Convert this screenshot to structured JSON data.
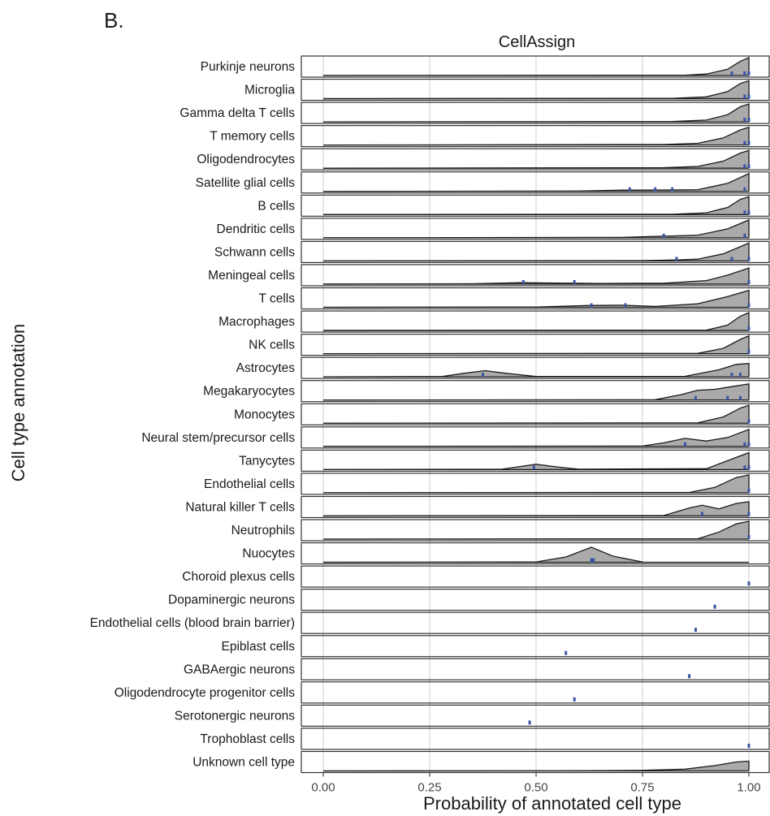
{
  "figure": {
    "panel_label": "B.",
    "strip_title": "CellAssign"
  },
  "chart_data": {
    "type": "ridgeline",
    "xlabel": "Probability of annotated cell type",
    "ylabel": "Cell type annotation",
    "xlim": [
      0,
      1
    ],
    "xticks": [
      0,
      0.25,
      0.5,
      0.75,
      1
    ],
    "xtick_labels": [
      "0.00",
      "0.25",
      "0.50",
      "0.75",
      "1.00"
    ],
    "grid": true,
    "colors": {
      "density_fill": "#aaaaaa",
      "density_line": "#1a1a1a",
      "rug": "#3a55a4",
      "grid": "#e6e6e6"
    },
    "series": [
      {
        "name": "Purkinje neurons",
        "density": [
          [
            0.85,
            0.02
          ],
          [
            0.9,
            0.08
          ],
          [
            0.95,
            0.35
          ],
          [
            0.98,
            0.8
          ],
          [
            1.0,
            1.0
          ]
        ],
        "rug": [
          0.96,
          0.99,
          1.0
        ]
      },
      {
        "name": "Microglia",
        "density": [
          [
            0.82,
            0.02
          ],
          [
            0.9,
            0.1
          ],
          [
            0.95,
            0.4
          ],
          [
            0.98,
            0.85
          ],
          [
            1.0,
            1.0
          ]
        ],
        "rug": [
          0.99,
          1.0
        ]
      },
      {
        "name": "Gamma delta T cells",
        "density": [
          [
            0.82,
            0.02
          ],
          [
            0.9,
            0.1
          ],
          [
            0.95,
            0.4
          ],
          [
            0.98,
            0.85
          ],
          [
            1.0,
            1.0
          ]
        ],
        "rug": [
          0.99,
          1.0
        ]
      },
      {
        "name": "T memory cells",
        "density": [
          [
            0.8,
            0.03
          ],
          [
            0.88,
            0.1
          ],
          [
            0.94,
            0.4
          ],
          [
            0.98,
            0.85
          ],
          [
            1.0,
            1.0
          ]
        ],
        "rug": [
          0.99,
          1.0
        ]
      },
      {
        "name": "Oligodendrocytes",
        "density": [
          [
            0.8,
            0.03
          ],
          [
            0.88,
            0.1
          ],
          [
            0.94,
            0.4
          ],
          [
            0.98,
            0.85
          ],
          [
            1.0,
            1.0
          ]
        ],
        "rug": [
          0.99,
          1.0
        ]
      },
      {
        "name": "Satellite glial cells",
        "density": [
          [
            0.6,
            0.02
          ],
          [
            0.7,
            0.07
          ],
          [
            0.8,
            0.08
          ],
          [
            0.88,
            0.1
          ],
          [
            0.95,
            0.45
          ],
          [
            1.0,
            1.0
          ]
        ],
        "rug": [
          0.72,
          0.78,
          0.82,
          0.99
        ]
      },
      {
        "name": "B cells",
        "density": [
          [
            0.82,
            0.02
          ],
          [
            0.9,
            0.1
          ],
          [
            0.95,
            0.4
          ],
          [
            0.98,
            0.85
          ],
          [
            1.0,
            1.0
          ]
        ],
        "rug": [
          0.99,
          1.0
        ]
      },
      {
        "name": "Dendritic cells",
        "density": [
          [
            0.7,
            0.02
          ],
          [
            0.78,
            0.08
          ],
          [
            0.82,
            0.1
          ],
          [
            0.88,
            0.15
          ],
          [
            0.95,
            0.5
          ],
          [
            1.0,
            1.0
          ]
        ],
        "rug": [
          0.8,
          0.99
        ]
      },
      {
        "name": "Schwann cells",
        "density": [
          [
            0.75,
            0.02
          ],
          [
            0.83,
            0.06
          ],
          [
            0.88,
            0.1
          ],
          [
            0.94,
            0.4
          ],
          [
            1.0,
            1.0
          ]
        ],
        "rug": [
          0.83,
          0.96,
          1.0
        ]
      },
      {
        "name": "Meningeal cells",
        "density": [
          [
            0.35,
            0.02
          ],
          [
            0.46,
            0.08
          ],
          [
            0.55,
            0.06
          ],
          [
            0.65,
            0.04
          ],
          [
            0.8,
            0.05
          ],
          [
            0.9,
            0.2
          ],
          [
            0.95,
            0.5
          ],
          [
            1.0,
            0.9
          ]
        ],
        "rug": [
          0.47,
          0.59,
          1.0
        ]
      },
      {
        "name": "T cells",
        "density": [
          [
            0.5,
            0.02
          ],
          [
            0.62,
            0.1
          ],
          [
            0.7,
            0.12
          ],
          [
            0.78,
            0.05
          ],
          [
            0.88,
            0.2
          ],
          [
            0.95,
            0.6
          ],
          [
            1.0,
            0.95
          ]
        ],
        "rug": [
          0.63,
          0.71,
          1.0
        ]
      },
      {
        "name": "Macrophages",
        "density": [
          [
            0.9,
            0.02
          ],
          [
            0.95,
            0.3
          ],
          [
            0.98,
            0.8
          ],
          [
            1.0,
            1.0
          ]
        ],
        "rug": [
          1.0
        ]
      },
      {
        "name": "NK cells",
        "density": [
          [
            0.88,
            0.02
          ],
          [
            0.94,
            0.3
          ],
          [
            0.98,
            0.8
          ],
          [
            1.0,
            1.0
          ]
        ],
        "rug": [
          1.0
        ]
      },
      {
        "name": "Astrocytes",
        "density": [
          [
            0.28,
            0.02
          ],
          [
            0.33,
            0.2
          ],
          [
            0.38,
            0.35
          ],
          [
            0.43,
            0.2
          ],
          [
            0.5,
            0.02
          ],
          [
            0.85,
            0.03
          ],
          [
            0.93,
            0.4
          ],
          [
            0.97,
            0.7
          ],
          [
            1.0,
            0.75
          ]
        ],
        "rug": [
          0.375,
          0.96,
          0.98
        ]
      },
      {
        "name": "Megakaryocytes",
        "density": [
          [
            0.78,
            0.02
          ],
          [
            0.84,
            0.3
          ],
          [
            0.88,
            0.55
          ],
          [
            0.92,
            0.6
          ],
          [
            0.96,
            0.75
          ],
          [
            1.0,
            0.9
          ]
        ],
        "rug": [
          0.875,
          0.95,
          0.98
        ]
      },
      {
        "name": "Monocytes",
        "density": [
          [
            0.88,
            0.02
          ],
          [
            0.94,
            0.35
          ],
          [
            0.98,
            0.85
          ],
          [
            1.0,
            1.0
          ]
        ],
        "rug": [
          1.0
        ]
      },
      {
        "name": "Neural stem/precursor cells",
        "density": [
          [
            0.75,
            0.02
          ],
          [
            0.8,
            0.2
          ],
          [
            0.85,
            0.45
          ],
          [
            0.9,
            0.3
          ],
          [
            0.95,
            0.5
          ],
          [
            1.0,
            0.95
          ]
        ],
        "rug": [
          0.85,
          0.99,
          1.0
        ]
      },
      {
        "name": "Tanycytes",
        "density": [
          [
            0.42,
            0.02
          ],
          [
            0.47,
            0.2
          ],
          [
            0.5,
            0.3
          ],
          [
            0.55,
            0.15
          ],
          [
            0.6,
            0.02
          ],
          [
            0.9,
            0.05
          ],
          [
            0.95,
            0.5
          ],
          [
            1.0,
            0.95
          ]
        ],
        "rug": [
          0.495,
          0.99,
          1.0
        ]
      },
      {
        "name": "Endothelial cells",
        "density": [
          [
            0.86,
            0.02
          ],
          [
            0.92,
            0.3
          ],
          [
            0.97,
            0.85
          ],
          [
            1.0,
            1.0
          ]
        ],
        "rug": [
          1.0
        ]
      },
      {
        "name": "Natural killer T cells",
        "density": [
          [
            0.8,
            0.02
          ],
          [
            0.86,
            0.45
          ],
          [
            0.89,
            0.6
          ],
          [
            0.93,
            0.4
          ],
          [
            0.97,
            0.7
          ],
          [
            1.0,
            0.8
          ]
        ],
        "rug": [
          0.89,
          1.0
        ]
      },
      {
        "name": "Neutrophils",
        "density": [
          [
            0.88,
            0.02
          ],
          [
            0.93,
            0.4
          ],
          [
            0.97,
            0.85
          ],
          [
            1.0,
            1.0
          ]
        ],
        "rug": [
          1.0
        ]
      },
      {
        "name": "Nuocytes",
        "density": [
          [
            0.5,
            0.02
          ],
          [
            0.57,
            0.3
          ],
          [
            0.63,
            0.85
          ],
          [
            0.68,
            0.35
          ],
          [
            0.75,
            0.02
          ]
        ],
        "rug": [
          0.63,
          0.635
        ]
      },
      {
        "name": "Choroid plexus cells",
        "density": [],
        "rug": [
          1.0
        ]
      },
      {
        "name": "Dopaminergic neurons",
        "density": [],
        "rug": [
          0.92
        ]
      },
      {
        "name": "Endothelial cells (blood brain barrier)",
        "density": [],
        "rug": [
          0.875
        ]
      },
      {
        "name": "Epiblast cells",
        "density": [],
        "rug": [
          0.57
        ]
      },
      {
        "name": "GABAergic neurons",
        "density": [],
        "rug": [
          0.86
        ]
      },
      {
        "name": "Oligodendrocyte progenitor cells",
        "density": [],
        "rug": [
          0.59
        ]
      },
      {
        "name": "Serotonergic neurons",
        "density": [],
        "rug": [
          0.485
        ]
      },
      {
        "name": "Trophoblast cells",
        "density": [],
        "rug": [
          1.0
        ]
      },
      {
        "name": "Unknown cell type",
        "density": [
          [
            0.6,
            0.01
          ],
          [
            0.75,
            0.03
          ],
          [
            0.85,
            0.1
          ],
          [
            0.92,
            0.3
          ],
          [
            0.97,
            0.5
          ],
          [
            1.0,
            0.55
          ]
        ],
        "rug": []
      }
    ]
  }
}
